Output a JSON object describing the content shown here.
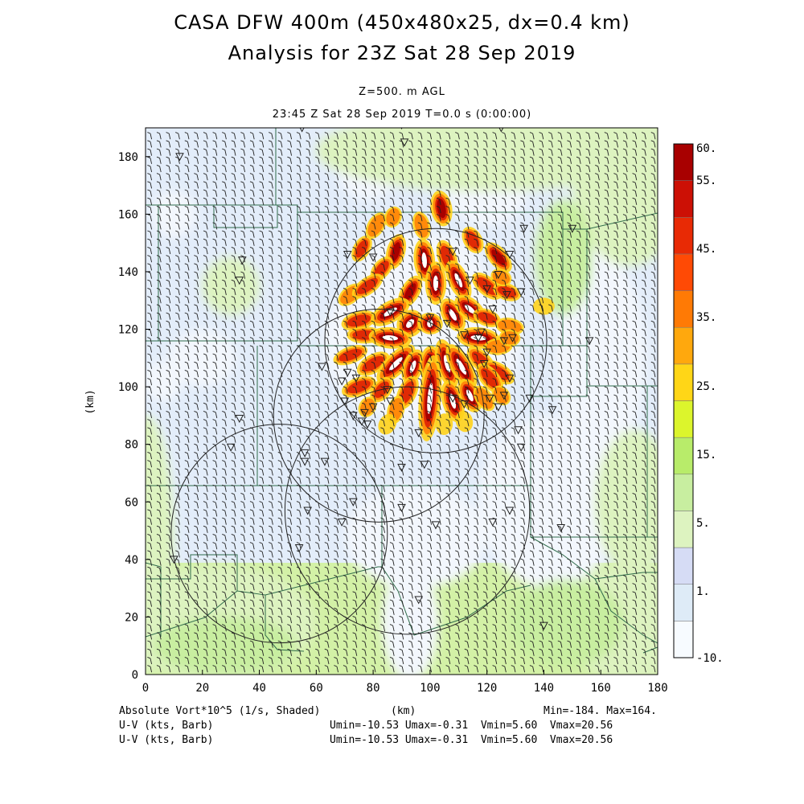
{
  "header": {
    "title_line1": "CASA DFW 400m (450x480x25, dx=0.4 km)",
    "title_line2": "Analysis for 23Z Sat 28 Sep 2019",
    "level": "Z=500. m AGL",
    "time": "23:45 Z Sat 28 Sep 2019    T=0.0 s (0:00:00)"
  },
  "chart_data": {
    "type": "heatmap",
    "xlabel": "(km)",
    "ylabel": "(km)",
    "xlim": [
      0,
      180
    ],
    "ylim": [
      0,
      190
    ],
    "xticks": [
      "0",
      "20",
      "40",
      "60",
      "80",
      "100",
      "120",
      "140",
      "160",
      "180"
    ],
    "yticks": [
      "0",
      "20",
      "40",
      "60",
      "80",
      "100",
      "120",
      "140",
      "160",
      "180"
    ],
    "colorbar": {
      "labels": [
        "60.",
        "55.",
        "45.",
        "35.",
        "25.",
        "15.",
        "5.",
        "1.",
        "-10."
      ],
      "colors": [
        "#f7fbff",
        "#deebf7",
        "#d6dcf5",
        "#ddf3c0",
        "#c8eea0",
        "#b8ec6a",
        "#dcf52c",
        "#ffd617",
        "#ffa80d",
        "#ff7a05",
        "#ff4a05",
        "#e82a05",
        "#cc1005",
        "#a80000"
      ]
    },
    "radar_rings": [
      {
        "cx": 102,
        "cy": 116,
        "r": 39
      },
      {
        "cx": 82,
        "cy": 90,
        "r": 37
      },
      {
        "cx": 92,
        "cy": 57,
        "r": 43
      },
      {
        "cx": 47,
        "cy": 49,
        "r": 38
      }
    ],
    "stations": [
      [
        55,
        190
      ],
      [
        90,
        191
      ],
      [
        125,
        190
      ],
      [
        12,
        180
      ],
      [
        91,
        185
      ],
      [
        34,
        144
      ],
      [
        33,
        137
      ],
      [
        71,
        146
      ],
      [
        80,
        145
      ],
      [
        108,
        147
      ],
      [
        133,
        155
      ],
      [
        150,
        155
      ],
      [
        128,
        146
      ],
      [
        120,
        134
      ],
      [
        122,
        127
      ],
      [
        114,
        137
      ],
      [
        127,
        132
      ],
      [
        124,
        139
      ],
      [
        132,
        133
      ],
      [
        100,
        124
      ],
      [
        86,
        126
      ],
      [
        106,
        122
      ],
      [
        112,
        118
      ],
      [
        117,
        117
      ],
      [
        118,
        119
      ],
      [
        126,
        116
      ],
      [
        120,
        112
      ],
      [
        119,
        108
      ],
      [
        129,
        117
      ],
      [
        135,
        96
      ],
      [
        108,
        96
      ],
      [
        156,
        116
      ],
      [
        143,
        92
      ],
      [
        121,
        96
      ],
      [
        124,
        93
      ],
      [
        126,
        97
      ],
      [
        62,
        107
      ],
      [
        71,
        105
      ],
      [
        74,
        103
      ],
      [
        69,
        102
      ],
      [
        70,
        95
      ],
      [
        85,
        99
      ],
      [
        86,
        95
      ],
      [
        80,
        93
      ],
      [
        73,
        90
      ],
      [
        78,
        87
      ],
      [
        76,
        88
      ],
      [
        77,
        91
      ],
      [
        112,
        94
      ],
      [
        128,
        103
      ],
      [
        33,
        89
      ],
      [
        30,
        79
      ],
      [
        56,
        77
      ],
      [
        56,
        74
      ],
      [
        63,
        74
      ],
      [
        90,
        72
      ],
      [
        98,
        73
      ],
      [
        96,
        84
      ],
      [
        132,
        79
      ],
      [
        131,
        85
      ],
      [
        57,
        57
      ],
      [
        73,
        60
      ],
      [
        102,
        52
      ],
      [
        128,
        57
      ],
      [
        122,
        53
      ],
      [
        90,
        58
      ],
      [
        69,
        53
      ],
      [
        54,
        44
      ],
      [
        96,
        26
      ],
      [
        140,
        17
      ],
      [
        10,
        40
      ],
      [
        146,
        51
      ]
    ],
    "vorticity_cells": [
      {
        "x": 104,
        "y": 162,
        "a": -10,
        "r": 5,
        "w": 2.5,
        "v": 50
      },
      {
        "x": 97,
        "y": 156,
        "a": -15,
        "r": 4,
        "w": 2,
        "v": 35
      },
      {
        "x": 87,
        "y": 159,
        "a": 20,
        "r": 3,
        "w": 2,
        "v": 30
      },
      {
        "x": 81,
        "y": 156,
        "a": 30,
        "r": 4,
        "w": 2,
        "v": 35
      },
      {
        "x": 76,
        "y": 148,
        "a": 30,
        "r": 4,
        "w": 2,
        "v": 40
      },
      {
        "x": 88,
        "y": 147,
        "a": 15,
        "r": 5,
        "w": 2.2,
        "v": 50
      },
      {
        "x": 98,
        "y": 144,
        "a": -5,
        "r": 6,
        "w": 2.5,
        "v": 55
      },
      {
        "x": 106,
        "y": 145,
        "a": -20,
        "r": 5,
        "w": 2.2,
        "v": 45
      },
      {
        "x": 115,
        "y": 151,
        "a": -30,
        "r": 4,
        "w": 2.2,
        "v": 45
      },
      {
        "x": 124,
        "y": 145,
        "a": -40,
        "r": 5,
        "w": 2.2,
        "v": 50
      },
      {
        "x": 83,
        "y": 141,
        "a": 40,
        "r": 4,
        "w": 2,
        "v": 40
      },
      {
        "x": 72,
        "y": 132,
        "a": 50,
        "r": 4,
        "w": 2,
        "v": 35
      },
      {
        "x": 78,
        "y": 135,
        "a": 55,
        "r": 5,
        "w": 2,
        "v": 45
      },
      {
        "x": 93,
        "y": 133,
        "a": 30,
        "r": 5,
        "w": 2.2,
        "v": 50
      },
      {
        "x": 102,
        "y": 136,
        "a": 0,
        "r": 6,
        "w": 2.5,
        "v": 60
      },
      {
        "x": 110,
        "y": 137,
        "a": -25,
        "r": 6,
        "w": 2.4,
        "v": 55
      },
      {
        "x": 120,
        "y": 135,
        "a": -50,
        "r": 5,
        "w": 2.2,
        "v": 45
      },
      {
        "x": 127,
        "y": 133,
        "a": -70,
        "r": 4,
        "w": 2,
        "v": 40
      },
      {
        "x": 125,
        "y": 138,
        "a": -65,
        "r": 3,
        "w": 2,
        "v": 35
      },
      {
        "x": 75,
        "y": 123,
        "a": 75,
        "r": 5,
        "w": 2.2,
        "v": 40
      },
      {
        "x": 86,
        "y": 126,
        "a": 60,
        "r": 6,
        "w": 2.5,
        "v": 55
      },
      {
        "x": 93,
        "y": 122,
        "a": 40,
        "r": 4,
        "w": 3,
        "v": 60
      },
      {
        "x": 100,
        "y": 122,
        "a": 10,
        "r": 3,
        "w": 3,
        "v": 55
      },
      {
        "x": 108,
        "y": 125,
        "a": -30,
        "r": 5,
        "w": 2.5,
        "v": 55
      },
      {
        "x": 114,
        "y": 127,
        "a": -50,
        "r": 5,
        "w": 2.5,
        "v": 55
      },
      {
        "x": 120,
        "y": 124,
        "a": -70,
        "r": 4,
        "w": 2,
        "v": 40
      },
      {
        "x": 128,
        "y": 121,
        "a": -80,
        "r": 4,
        "w": 2,
        "v": 35
      },
      {
        "x": 140,
        "y": 128,
        "a": -90,
        "r": 3,
        "w": 2,
        "v": 25
      },
      {
        "x": 77,
        "y": 118,
        "a": 90,
        "r": 5,
        "w": 2,
        "v": 40
      },
      {
        "x": 86,
        "y": 117,
        "a": -85,
        "r": 6,
        "w": 2.5,
        "v": 55
      },
      {
        "x": 117,
        "y": 117,
        "a": 95,
        "r": 6,
        "w": 2.5,
        "v": 55
      },
      {
        "x": 124,
        "y": 114,
        "a": -95,
        "r": 4,
        "w": 2,
        "v": 35
      },
      {
        "x": 128,
        "y": 117,
        "a": 95,
        "r": 3,
        "w": 2,
        "v": 30
      },
      {
        "x": 72,
        "y": 111,
        "a": 70,
        "r": 5,
        "w": 2,
        "v": 40
      },
      {
        "x": 80,
        "y": 108,
        "a": 60,
        "r": 5,
        "w": 2.2,
        "v": 45
      },
      {
        "x": 88,
        "y": 108,
        "a": 45,
        "r": 7,
        "w": 2.5,
        "v": 55
      },
      {
        "x": 94,
        "y": 107,
        "a": 20,
        "r": 5,
        "w": 2.4,
        "v": 55
      },
      {
        "x": 100,
        "y": 108,
        "a": 5,
        "r": 5,
        "w": 2.5,
        "v": 55
      },
      {
        "x": 106,
        "y": 108,
        "a": -15,
        "r": 7,
        "w": 2.5,
        "v": 60
      },
      {
        "x": 111,
        "y": 107,
        "a": -30,
        "r": 7,
        "w": 2.5,
        "v": 60
      },
      {
        "x": 118,
        "y": 109,
        "a": -45,
        "r": 5,
        "w": 2.2,
        "v": 45
      },
      {
        "x": 124,
        "y": 105,
        "a": -60,
        "r": 5,
        "w": 2.2,
        "v": 45
      },
      {
        "x": 75,
        "y": 100,
        "a": 70,
        "r": 5,
        "w": 2.2,
        "v": 45
      },
      {
        "x": 83,
        "y": 99,
        "a": 40,
        "r": 4,
        "w": 2.2,
        "v": 45
      },
      {
        "x": 92,
        "y": 98,
        "a": 25,
        "r": 5,
        "w": 2.2,
        "v": 45
      },
      {
        "x": 100,
        "y": 96,
        "a": 5,
        "r": 12,
        "w": 2.6,
        "v": 60
      },
      {
        "x": 108,
        "y": 95,
        "a": -15,
        "r": 6,
        "w": 2.5,
        "v": 55
      },
      {
        "x": 114,
        "y": 97,
        "a": -25,
        "r": 5,
        "w": 2.5,
        "v": 55
      },
      {
        "x": 119,
        "y": 96,
        "a": -35,
        "r": 4,
        "w": 2,
        "v": 35
      },
      {
        "x": 121,
        "y": 103,
        "a": -40,
        "r": 5,
        "w": 2.2,
        "v": 45
      },
      {
        "x": 125,
        "y": 97,
        "a": -40,
        "r": 3,
        "w": 2,
        "v": 30
      },
      {
        "x": 78,
        "y": 93,
        "a": 30,
        "r": 3,
        "w": 2,
        "v": 30
      },
      {
        "x": 88,
        "y": 92,
        "a": 15,
        "r": 4,
        "w": 2,
        "v": 35
      },
      {
        "x": 85,
        "y": 87,
        "a": 30,
        "r": 3,
        "w": 2,
        "v": 25
      },
      {
        "x": 105,
        "y": 87,
        "a": 5,
        "r": 3,
        "w": 2,
        "v": 25
      },
      {
        "x": 112,
        "y": 88,
        "a": -15,
        "r": 3,
        "w": 2,
        "v": 20
      }
    ],
    "pale_zones": [
      {
        "x": 97,
        "y": 140,
        "rx": 22,
        "ry": 14
      },
      {
        "x": 97,
        "y": 115,
        "rx": 35,
        "ry": 27
      },
      {
        "x": 120,
        "y": 168,
        "rx": 14,
        "ry": 12
      },
      {
        "x": 78,
        "y": 174,
        "rx": 10,
        "ry": 9
      },
      {
        "x": 10,
        "y": 160,
        "rx": 8,
        "ry": 8
      },
      {
        "x": 6,
        "y": 102,
        "rx": 7,
        "ry": 7
      },
      {
        "x": 160,
        "y": 110,
        "rx": 16,
        "ry": 35
      },
      {
        "x": 155,
        "y": 145,
        "rx": 12,
        "ry": 20
      },
      {
        "x": 95,
        "y": 48,
        "rx": 25,
        "ry": 18
      },
      {
        "x": 142,
        "y": 60,
        "rx": 25,
        "ry": 30
      },
      {
        "x": 93,
        "y": 18,
        "rx": 10,
        "ry": 20
      },
      {
        "x": 20,
        "y": 110,
        "rx": 12,
        "ry": 10
      }
    ],
    "green_zones": [
      {
        "x": 120,
        "y": 182,
        "rx": 60,
        "ry": 14,
        "c": "#ddf3c0"
      },
      {
        "x": 170,
        "y": 172,
        "rx": 20,
        "ry": 30,
        "c": "#ddf3c0"
      },
      {
        "x": 172,
        "y": 60,
        "rx": 14,
        "ry": 25,
        "c": "#ddf3c0"
      },
      {
        "x": 25,
        "y": 18,
        "rx": 35,
        "ry": 20,
        "c": "#ddf3c0"
      },
      {
        "x": 170,
        "y": 18,
        "rx": 25,
        "ry": 20,
        "c": "#ddf3c0"
      },
      {
        "x": 30,
        "y": 135,
        "rx": 10,
        "ry": 10,
        "c": "#ddf3c0"
      },
      {
        "x": 0,
        "y": 45,
        "rx": 10,
        "ry": 45,
        "c": "#ddf3c0"
      },
      {
        "x": 147,
        "y": 145,
        "rx": 10,
        "ry": 20,
        "c": "#c8eea0"
      },
      {
        "x": 148,
        "y": 18,
        "rx": 20,
        "ry": 15,
        "c": "#c8eea0"
      },
      {
        "x": 28,
        "y": 10,
        "rx": 25,
        "ry": 10,
        "c": "#c8eea0"
      }
    ]
  },
  "footer": {
    "field_label": "Absolute Vort*10^5 (1/s, Shaded)",
    "xunit": "(km)",
    "minmax": "Min=-184. Max=164.",
    "vector1_label": "U-V (kts, Barb)",
    "vector1_range": "Umin=-10.53 Umax=-0.31  Vmin=5.60  Vmax=20.56",
    "vector2_label": "U-V (kts, Barb)",
    "vector2_range": "Umin=-10.53 Umax=-0.31  Vmin=5.60  Vmax=20.56"
  }
}
